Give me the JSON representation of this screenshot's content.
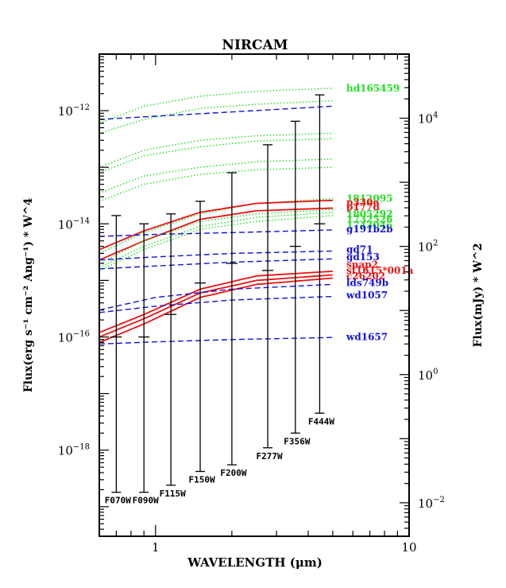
{
  "chart_data": {
    "type": "line",
    "title": "NIRCAM",
    "xlabel": "WAVELENGTH (μm)",
    "ylabel_left": "Flux(erg s⁻¹ cm⁻² Ang⁻¹) * W^4",
    "ylabel_right": "Flux(mJy) * W^2",
    "x_scale": "log",
    "y_scale": "log",
    "xlim": [
      0.6,
      10
    ],
    "ylim_left": [
      3e-20,
      1e-11
    ],
    "ylim_right": [
      0.003,
      100000
    ],
    "x_ticks": [
      {
        "value": 1,
        "label": "1"
      },
      {
        "value": 10,
        "label": "10"
      }
    ],
    "y_ticks_left": [
      {
        "value": 1e-12,
        "base": "10",
        "exp": "−12"
      },
      {
        "value": 1e-14,
        "base": "10",
        "exp": "−14"
      },
      {
        "value": 1e-16,
        "base": "10",
        "exp": "−16"
      },
      {
        "value": 1e-18,
        "base": "10",
        "exp": "−18"
      }
    ],
    "y_ticks_right": [
      {
        "value": 10000,
        "base": "10",
        "exp": "4"
      },
      {
        "value": 100,
        "base": "10",
        "exp": "2"
      },
      {
        "value": 1,
        "base": "10",
        "exp": "0"
      },
      {
        "value": 0.01,
        "base": "10",
        "exp": "−2"
      }
    ],
    "colors": {
      "green": "#22dd22",
      "red": "#ee1111",
      "blue": "#1111dd",
      "black": "#000000"
    },
    "filters": [
      {
        "name": "F070W",
        "x": 0.7,
        "low": 1.8e-19,
        "high": 1.4e-14
      },
      {
        "name": "F090W",
        "x": 0.9,
        "low": 1.8e-19,
        "high": 1e-14
      },
      {
        "name": "F115W",
        "x": 1.15,
        "low": 2.4e-19,
        "high": 1.5e-14
      },
      {
        "name": "F150W",
        "x": 1.5,
        "low": 4.2e-19,
        "high": 2.5e-14
      },
      {
        "name": "F200W",
        "x": 2.0,
        "low": 5.5e-19,
        "high": 8e-14
      },
      {
        "name": "F277W",
        "x": 2.77,
        "low": 1.1e-18,
        "high": 2.5e-13
      },
      {
        "name": "F356W",
        "x": 3.56,
        "low": 2e-18,
        "high": 6.5e-13
      },
      {
        "name": "F444W",
        "x": 4.44,
        "low": 4.5e-18,
        "high": 1.9e-12
      }
    ],
    "filter_markers": [
      {
        "x": 0.7,
        "value": 1e-16
      },
      {
        "x": 0.9,
        "value": 1e-16
      },
      {
        "x": 1.15,
        "value": 2.5e-16
      },
      {
        "x": 1.5,
        "value": 9e-16
      },
      {
        "x": 2.0,
        "value": 2e-15
      },
      {
        "x": 2.77,
        "value": 1.5e-15
      },
      {
        "x": 3.56,
        "value": 4e-15
      },
      {
        "x": 4.44,
        "value": 1e-14
      }
    ],
    "labeled_series": [
      {
        "name": "hd165459",
        "color": "green",
        "style": "dotted",
        "label_value": 2.5e-12,
        "points": [
          [
            0.6,
            6e-13
          ],
          [
            0.9,
            1.2e-12
          ],
          [
            1.5,
            1.8e-12
          ],
          [
            2.5,
            2.2e-12
          ],
          [
            5.0,
            2.5e-12
          ]
        ]
      },
      {
        "name": "1812095",
        "color": "green",
        "style": "dotted",
        "label_value": 2.8e-14,
        "points": [
          [
            0.6,
            3e-15
          ],
          [
            0.9,
            7e-15
          ],
          [
            1.5,
            1.5e-14
          ],
          [
            2.5,
            2.3e-14
          ],
          [
            5.0,
            2.8e-14
          ]
        ]
      },
      {
        "name": "p330e",
        "color": "red",
        "style": "solid",
        "label_value": 2.4e-14,
        "points": [
          [
            0.6,
            3.5e-15
          ],
          [
            0.9,
            7.5e-15
          ],
          [
            1.5,
            1.6e-14
          ],
          [
            2.5,
            2.3e-14
          ],
          [
            5.0,
            2.6e-14
          ]
        ]
      },
      {
        "name": "p177d",
        "color": "red",
        "style": "solid",
        "label_value": 2e-14,
        "points": [
          [
            0.6,
            2.3e-15
          ],
          [
            0.9,
            5e-15
          ],
          [
            1.5,
            1.2e-14
          ],
          [
            2.5,
            1.7e-14
          ],
          [
            5.0,
            1.9e-14
          ]
        ]
      },
      {
        "name": "1805292",
        "color": "green",
        "style": "dotted",
        "label_value": 1.5e-14,
        "points": [
          [
            0.6,
            2e-15
          ],
          [
            0.9,
            5e-15
          ],
          [
            1.5,
            1.1e-14
          ],
          [
            2.5,
            1.5e-14
          ],
          [
            5.0,
            1.8e-14
          ]
        ]
      },
      {
        "name": "1732526",
        "color": "green",
        "style": "dotted",
        "label_value": 1.2e-14,
        "points": [
          [
            0.6,
            1.7e-15
          ],
          [
            0.9,
            4e-15
          ],
          [
            1.5,
            9e-15
          ],
          [
            2.5,
            1.3e-14
          ],
          [
            5.0,
            1.6e-14
          ]
        ]
      },
      {
        "name": "1743045",
        "color": "green",
        "style": "dotted",
        "label_value": 9.5e-15,
        "points": [
          [
            0.6,
            1.5e-15
          ],
          [
            0.9,
            3.5e-15
          ],
          [
            1.5,
            8e-15
          ],
          [
            2.5,
            1.1e-14
          ],
          [
            5.0,
            1.4e-14
          ]
        ]
      },
      {
        "name": "g191b2b",
        "color": "blue",
        "style": "dashed",
        "label_value": 8e-15,
        "points": [
          [
            0.6,
            6e-15
          ],
          [
            1.0,
            6.5e-15
          ],
          [
            2.0,
            7e-15
          ],
          [
            5.0,
            7.8e-15
          ]
        ]
      },
      {
        "name": "gd71",
        "color": "blue",
        "style": "dashed",
        "label_value": 3.5e-15,
        "points": [
          [
            0.6,
            2.3e-15
          ],
          [
            1.0,
            2.6e-15
          ],
          [
            2.0,
            3e-15
          ],
          [
            5.0,
            3.3e-15
          ]
        ]
      },
      {
        "name": "gd153",
        "color": "blue",
        "style": "dashed",
        "label_value": 2.6e-15,
        "points": [
          [
            0.6,
            1.6e-15
          ],
          [
            1.0,
            1.8e-15
          ],
          [
            2.0,
            2.1e-15
          ],
          [
            5.0,
            2.4e-15
          ]
        ]
      },
      {
        "name": "snap2",
        "color": "red",
        "style": "solid",
        "label_value": 1.9e-15,
        "points": [
          [
            0.6,
            1.2e-16
          ],
          [
            0.9,
            2.5e-16
          ],
          [
            1.5,
            7e-16
          ],
          [
            2.5,
            1.2e-15
          ],
          [
            5.0,
            1.45e-15
          ]
        ]
      },
      {
        "name": "sf1615*001a",
        "color": "red",
        "style": "solid",
        "label_value": 1.5e-15,
        "points": [
          [
            0.6,
            1e-16
          ],
          [
            0.9,
            2.1e-16
          ],
          [
            1.5,
            6e-16
          ],
          [
            2.5,
            1e-15
          ],
          [
            5.0,
            1.25e-15
          ]
        ]
      },
      {
        "name": "c26202",
        "color": "red",
        "style": "solid",
        "label_value": 1.2e-15,
        "points": [
          [
            0.6,
            8e-17
          ],
          [
            0.9,
            1.7e-16
          ],
          [
            1.5,
            5e-16
          ],
          [
            2.5,
            8.5e-16
          ],
          [
            5.0,
            1.1e-15
          ]
        ]
      },
      {
        "name": "lds749b",
        "color": "blue",
        "style": "dashed",
        "label_value": 9e-16,
        "points": [
          [
            0.6,
            3e-16
          ],
          [
            1.0,
            5e-16
          ],
          [
            2.0,
            7e-16
          ],
          [
            5.0,
            8.5e-16
          ]
        ]
      },
      {
        "name": "wd1057",
        "color": "blue",
        "style": "dashed",
        "label_value": 5.5e-16,
        "points": [
          [
            0.6,
            2.7e-16
          ],
          [
            1.0,
            3.5e-16
          ],
          [
            2.0,
            4.5e-16
          ],
          [
            5.0,
            5.2e-16
          ]
        ]
      },
      {
        "name": "wd1657",
        "color": "blue",
        "style": "dashed",
        "label_value": 1e-16,
        "points": [
          [
            0.6,
            7.5e-17
          ],
          [
            1.0,
            8.2e-17
          ],
          [
            2.0,
            9e-17
          ],
          [
            5.0,
            9.8e-17
          ]
        ]
      },
      {
        "name": "",
        "color": "green",
        "style": "dotted",
        "points": [
          [
            0.6,
            4e-13
          ],
          [
            0.9,
            7e-13
          ],
          [
            1.5,
            1.1e-12
          ],
          [
            2.5,
            1.3e-12
          ],
          [
            5.0,
            1.5e-12
          ]
        ]
      },
      {
        "name": "",
        "color": "green",
        "style": "dotted",
        "points": [
          [
            0.6,
            1e-13
          ],
          [
            0.9,
            2e-13
          ],
          [
            1.5,
            3e-13
          ],
          [
            2.5,
            3.6e-13
          ],
          [
            5.0,
            4e-13
          ]
        ]
      },
      {
        "name": "",
        "color": "green",
        "style": "dotted",
        "points": [
          [
            0.6,
            8e-14
          ],
          [
            0.9,
            1.6e-13
          ],
          [
            1.5,
            2.3e-13
          ],
          [
            2.5,
            2.9e-13
          ],
          [
            5.0,
            3.2e-13
          ]
        ]
      },
      {
        "name": "",
        "color": "green",
        "style": "dotted",
        "points": [
          [
            0.6,
            3.5e-14
          ],
          [
            0.9,
            7e-14
          ],
          [
            1.5,
            1e-13
          ],
          [
            2.5,
            1.25e-13
          ],
          [
            5.0,
            1.4e-13
          ]
        ]
      },
      {
        "name": "",
        "color": "green",
        "style": "dotted",
        "points": [
          [
            0.6,
            2.5e-14
          ],
          [
            0.9,
            5e-14
          ],
          [
            1.5,
            7.5e-14
          ],
          [
            2.5,
            9e-14
          ],
          [
            5.0,
            1e-13
          ]
        ]
      },
      {
        "name": "",
        "color": "blue",
        "style": "dashed",
        "points": [
          [
            0.6,
            7e-13
          ],
          [
            1.0,
            8e-13
          ],
          [
            2.0,
            9.5e-13
          ],
          [
            5.0,
            1.2e-12
          ]
        ]
      }
    ]
  }
}
